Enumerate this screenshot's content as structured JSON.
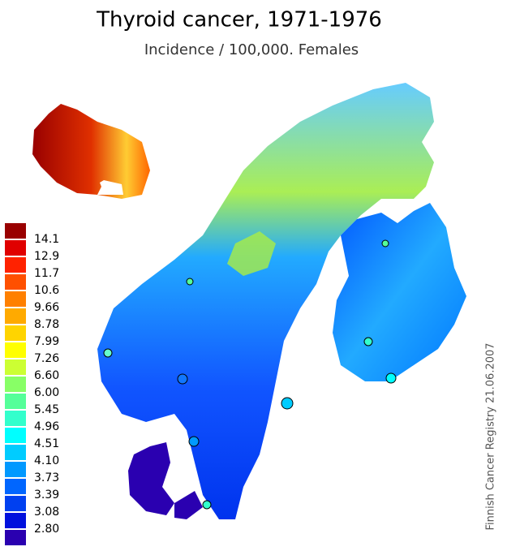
{
  "header": {
    "title": "Thyroid cancer, 1971-1976",
    "subtitle": "Incidence / 100,000. Females"
  },
  "legend": {
    "colors": [
      "#990000",
      "#e00000",
      "#ff2200",
      "#ff5000",
      "#ff8000",
      "#ffaa00",
      "#ffd400",
      "#ffff00",
      "#ccff33",
      "#88ff66",
      "#55ff99",
      "#33ffcc",
      "#00ffff",
      "#00ccff",
      "#0099ff",
      "#0066ff",
      "#0040f0",
      "#0010dd",
      "#2a00b0"
    ],
    "labels": [
      "14.1",
      "12.9",
      "11.7",
      "10.6",
      "9.66",
      "8.78",
      "7.99",
      "7.26",
      "6.60",
      "6.00",
      "5.45",
      "4.96",
      "4.51",
      "4.10",
      "3.73",
      "3.39",
      "3.08",
      "2.80"
    ]
  },
  "credit": "Finnish Cancer Registry 21.06.2007"
}
